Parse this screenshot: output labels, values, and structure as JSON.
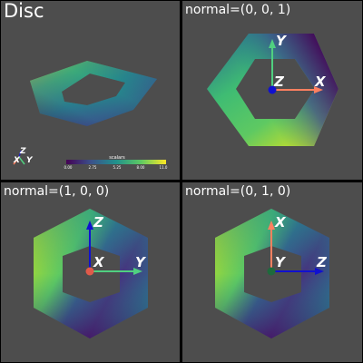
{
  "viewports": {
    "tl": {
      "title": "Disc"
    },
    "tr": {
      "title": "normal=(0, 0, 1)",
      "axes": [
        "X",
        "Y",
        "Z"
      ]
    },
    "bl": {
      "title": "normal=(1, 0, 0)",
      "axes": [
        "Y",
        "Z",
        "X"
      ]
    },
    "br": {
      "title": "normal=(0, 1, 0)",
      "axes": [
        "Z",
        "X",
        "Y"
      ]
    }
  },
  "orientation_widget": {
    "labels": [
      "Z",
      "X",
      "Y"
    ]
  },
  "scalar_bar": {
    "title": "scalars",
    "ticks": [
      "0.00",
      "2.75",
      "5.25",
      "8.00",
      "11.0"
    ]
  },
  "colors": {
    "background": "#4d4d4d",
    "separator": "#000000",
    "axis_x": "#ff8060",
    "axis_y": "#50d080",
    "axis_z": "#1010d0",
    "colormap": [
      "#440154",
      "#3b528b",
      "#21918c",
      "#5ec962",
      "#fde725"
    ]
  }
}
